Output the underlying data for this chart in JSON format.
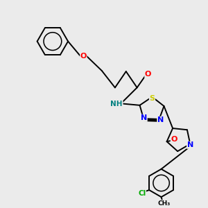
{
  "bg_color": "#ebebeb",
  "bond_color": "#000000",
  "atom_colors": {
    "O": "#ff0000",
    "N": "#0000ff",
    "S": "#cccc00",
    "Cl": "#00aa00",
    "H": "#008080",
    "C": "#000000"
  },
  "lw": 1.4
}
